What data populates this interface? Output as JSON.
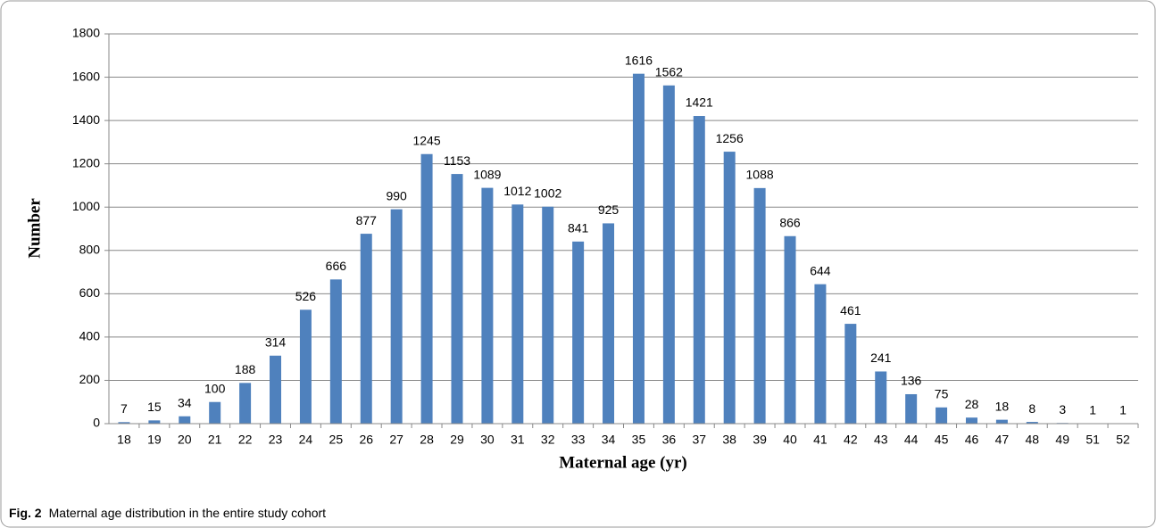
{
  "chart_data": {
    "type": "bar",
    "x_label": "Maternal age (yr)",
    "y_label": "Number",
    "categories": [
      "18",
      "19",
      "20",
      "21",
      "22",
      "23",
      "24",
      "25",
      "26",
      "27",
      "28",
      "29",
      "30",
      "31",
      "32",
      "33",
      "34",
      "35",
      "36",
      "37",
      "38",
      "39",
      "40",
      "41",
      "42",
      "43",
      "44",
      "45",
      "46",
      "47",
      "48",
      "49",
      "51",
      "52"
    ],
    "values": [
      7,
      15,
      34,
      100,
      188,
      314,
      526,
      666,
      877,
      990,
      1245,
      1153,
      1089,
      1012,
      1002,
      841,
      925,
      1616,
      1562,
      1421,
      1256,
      1088,
      866,
      644,
      461,
      241,
      136,
      75,
      28,
      18,
      8,
      3,
      1,
      1
    ],
    "color": "#4f81bd",
    "ylim": [
      0,
      1800
    ],
    "yticks": [
      0,
      200,
      400,
      600,
      800,
      1000,
      1200,
      1400,
      1600,
      1800
    ],
    "grid": true
  },
  "caption": {
    "label": "Fig. 2",
    "text": "Maternal age distribution in the entire study cohort"
  }
}
